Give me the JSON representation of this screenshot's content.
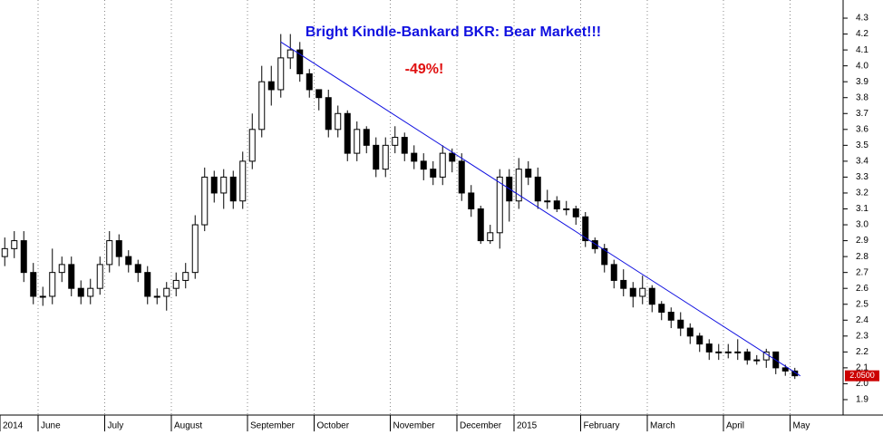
{
  "chart_data": {
    "type": "candlestick",
    "title": "Bright Kindle-Bankard BKR: Bear Market!!!",
    "annotation": "-49%!",
    "color": "#000000",
    "trendline": {
      "color": "#1010e0",
      "x": [
        29,
        83
      ],
      "y": [
        4.15,
        2.05
      ]
    },
    "last_label": {
      "value": 2.05,
      "label": "2.0500",
      "color": "#cc0000"
    },
    "ylim": [
      1.82,
      4.38
    ],
    "yticks": [
      {
        "value": 1.9,
        "label": "1.9"
      },
      {
        "value": 2.0,
        "label": "2.0"
      },
      2.1,
      2.2,
      2.3,
      2.4,
      2.5,
      2.6,
      2.7,
      2.8,
      2.9,
      {
        "value": 3.0,
        "label": "3.0"
      },
      3.1,
      3.2,
      3.3,
      3.4,
      3.5,
      3.6,
      3.7,
      3.8,
      3.9,
      {
        "value": 4.0,
        "label": "4.0"
      },
      4.1,
      4.2,
      4.3
    ],
    "grid": true,
    "categories": [
      "2014",
      null,
      null,
      null,
      "June",
      null,
      null,
      null,
      null,
      null,
      null,
      "July",
      null,
      null,
      null,
      null,
      null,
      null,
      "August",
      null,
      null,
      null,
      null,
      null,
      null,
      null,
      "September",
      null,
      null,
      null,
      null,
      null,
      null,
      "October",
      null,
      null,
      null,
      null,
      null,
      null,
      null,
      "November",
      null,
      null,
      null,
      null,
      null,
      null,
      "December",
      null,
      null,
      null,
      null,
      null,
      "2015",
      null,
      null,
      null,
      null,
      null,
      null,
      "February",
      null,
      null,
      null,
      null,
      null,
      null,
      "March",
      null,
      null,
      null,
      null,
      null,
      null,
      null,
      "April",
      null,
      null,
      null,
      null,
      null,
      null,
      "May"
    ],
    "open": [
      2.8,
      2.85,
      2.9,
      2.7,
      2.55,
      2.55,
      2.7,
      2.75,
      2.6,
      2.55,
      2.6,
      2.75,
      2.9,
      2.8,
      2.75,
      2.7,
      2.55,
      2.55,
      2.6,
      2.65,
      2.7,
      3.0,
      3.3,
      3.2,
      3.3,
      3.15,
      3.4,
      3.6,
      3.9,
      3.85,
      4.05,
      4.1,
      3.95,
      3.85,
      3.8,
      3.6,
      3.7,
      3.45,
      3.6,
      3.5,
      3.35,
      3.5,
      3.55,
      3.45,
      3.4,
      3.35,
      3.3,
      3.45,
      3.4,
      3.2,
      3.1,
      2.9,
      2.95,
      3.3,
      3.15,
      3.35,
      3.3,
      3.15,
      3.15,
      3.1,
      3.1,
      3.05,
      2.9,
      2.85,
      2.75,
      2.65,
      2.6,
      2.55,
      2.6,
      2.5,
      2.45,
      2.4,
      2.35,
      2.3,
      2.25,
      2.2,
      2.2,
      2.2,
      2.2,
      2.15,
      2.15,
      2.2,
      2.1,
      2.08
    ],
    "high": [
      2.92,
      2.96,
      2.96,
      2.76,
      2.61,
      2.85,
      2.8,
      2.8,
      2.65,
      2.66,
      2.8,
      2.96,
      2.94,
      2.84,
      2.78,
      2.74,
      2.6,
      2.64,
      2.7,
      2.76,
      3.06,
      3.36,
      3.34,
      3.35,
      3.34,
      3.46,
      3.7,
      4.0,
      4.0,
      4.2,
      4.2,
      4.15,
      3.98,
      3.85,
      3.85,
      3.75,
      3.72,
      3.65,
      3.62,
      3.55,
      3.55,
      3.62,
      3.58,
      3.5,
      3.45,
      3.4,
      3.5,
      3.48,
      3.45,
      3.25,
      3.12,
      3.0,
      3.35,
      3.35,
      3.42,
      3.4,
      3.36,
      3.22,
      3.18,
      3.15,
      3.12,
      3.08,
      2.92,
      2.88,
      2.78,
      2.72,
      2.64,
      2.68,
      2.62,
      2.52,
      2.48,
      2.45,
      2.38,
      2.32,
      2.28,
      2.25,
      2.25,
      2.28,
      2.22,
      2.18,
      2.22,
      2.2,
      2.12,
      2.1
    ],
    "low": [
      2.74,
      2.79,
      2.64,
      2.5,
      2.49,
      2.5,
      2.64,
      2.55,
      2.5,
      2.5,
      2.56,
      2.7,
      2.74,
      2.7,
      2.64,
      2.5,
      2.5,
      2.46,
      2.55,
      2.6,
      2.66,
      2.96,
      3.14,
      3.1,
      3.1,
      3.1,
      3.35,
      3.55,
      3.75,
      3.8,
      3.98,
      3.9,
      3.8,
      3.72,
      3.55,
      3.55,
      3.4,
      3.4,
      3.45,
      3.3,
      3.3,
      3.45,
      3.4,
      3.35,
      3.28,
      3.25,
      3.25,
      3.33,
      3.15,
      3.05,
      2.88,
      2.88,
      2.85,
      3.02,
      3.1,
      3.25,
      3.1,
      3.1,
      3.08,
      3.06,
      3.0,
      2.86,
      2.82,
      2.7,
      2.6,
      2.55,
      2.48,
      2.5,
      2.45,
      2.4,
      2.35,
      2.3,
      2.25,
      2.2,
      2.15,
      2.15,
      2.16,
      2.15,
      2.12,
      2.12,
      2.1,
      2.06,
      2.05,
      2.03
    ],
    "close": [
      2.85,
      2.9,
      2.7,
      2.55,
      2.55,
      2.7,
      2.75,
      2.6,
      2.55,
      2.6,
      2.75,
      2.9,
      2.8,
      2.75,
      2.7,
      2.55,
      2.55,
      2.6,
      2.65,
      2.7,
      3.0,
      3.3,
      3.2,
      3.3,
      3.15,
      3.4,
      3.6,
      3.9,
      3.85,
      4.05,
      4.1,
      3.95,
      3.85,
      3.8,
      3.6,
      3.7,
      3.45,
      3.6,
      3.5,
      3.35,
      3.5,
      3.55,
      3.45,
      3.4,
      3.35,
      3.3,
      3.45,
      3.4,
      3.2,
      3.1,
      2.9,
      2.95,
      3.3,
      3.15,
      3.35,
      3.3,
      3.15,
      3.15,
      3.1,
      3.1,
      3.05,
      2.9,
      2.85,
      2.75,
      2.65,
      2.6,
      2.55,
      2.6,
      2.5,
      2.45,
      2.4,
      2.35,
      2.3,
      2.25,
      2.2,
      2.2,
      2.2,
      2.2,
      2.15,
      2.15,
      2.2,
      2.1,
      2.08,
      2.05
    ]
  }
}
